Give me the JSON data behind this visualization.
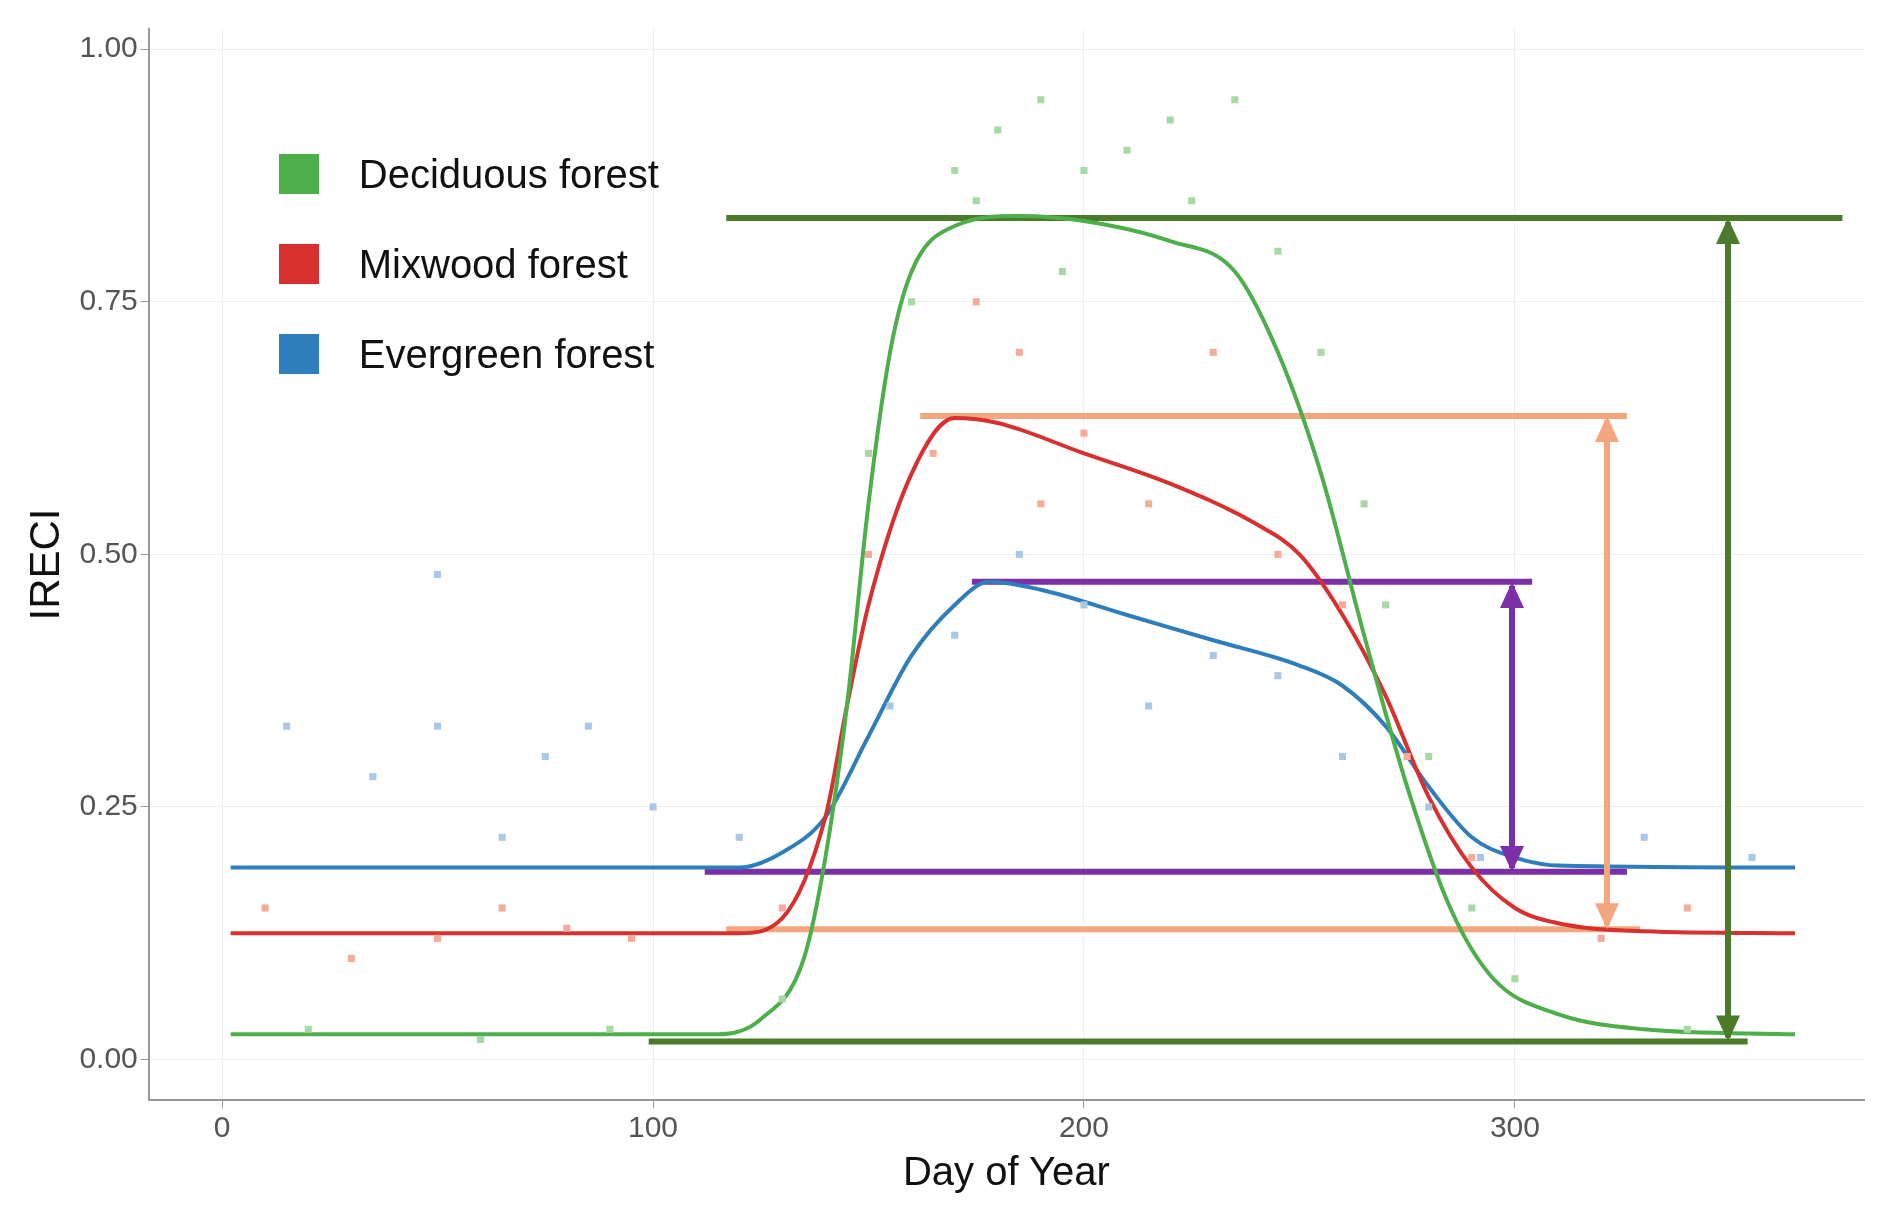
{
  "chart_data": {
    "type": "line",
    "xlabel": "Day of Year",
    "ylabel": "IRECI",
    "xlim": [
      -17,
      381
    ],
    "ylim": [
      -0.04,
      1.02
    ],
    "xticks": [
      0,
      100,
      200,
      300
    ],
    "yticks": [
      {
        "value": 0,
        "label": "0.00"
      },
      {
        "value": 0.25,
        "label": "0.25"
      },
      {
        "value": 0.5,
        "label": "0.50"
      },
      {
        "value": 0.75,
        "label": "0.75"
      },
      {
        "value": 1,
        "label": "1.00"
      }
    ],
    "grid": true,
    "legend": "top left",
    "marker": "none",
    "series": [
      {
        "type": "scatter",
        "marker": "square",
        "color": "#a8d8a4",
        "x": [
          150,
          160,
          170,
          180,
          190,
          200,
          210,
          220,
          235,
          245,
          255,
          265,
          270,
          280,
          290,
          300,
          20,
          60,
          90,
          340,
          130,
          225,
          195,
          175
        ],
        "values": [
          0.6,
          0.75,
          0.88,
          0.92,
          0.95,
          0.88,
          0.9,
          0.93,
          0.95,
          0.8,
          0.7,
          0.55,
          0.45,
          0.3,
          0.15,
          0.08,
          0.03,
          0.02,
          0.03,
          0.03,
          0.06,
          0.85,
          0.78,
          0.85
        ]
      },
      {
        "type": "scatter",
        "marker": "square",
        "color": "#f5ab9a",
        "x": [
          10,
          30,
          50,
          65,
          80,
          95,
          130,
          150,
          165,
          175,
          185,
          200,
          215,
          230,
          245,
          260,
          275,
          290,
          320,
          340,
          190
        ],
        "values": [
          0.15,
          0.1,
          0.12,
          0.15,
          0.13,
          0.12,
          0.15,
          0.5,
          0.6,
          0.75,
          0.7,
          0.62,
          0.55,
          0.7,
          0.5,
          0.45,
          0.3,
          0.2,
          0.12,
          0.15,
          0.55
        ]
      },
      {
        "type": "scatter",
        "marker": "square",
        "color": "#a9c8e6",
        "x": [
          15,
          35,
          50,
          65,
          75,
          85,
          100,
          120,
          155,
          170,
          185,
          200,
          215,
          230,
          245,
          260,
          280,
          292,
          330,
          355,
          50
        ],
        "values": [
          0.33,
          0.28,
          0.33,
          0.22,
          0.3,
          0.33,
          0.25,
          0.22,
          0.35,
          0.42,
          0.5,
          0.45,
          0.35,
          0.4,
          0.38,
          0.3,
          0.25,
          0.2,
          0.22,
          0.2,
          0.48
        ]
      },
      {
        "name": "Deciduous forest",
        "color": "#4daf4a",
        "x": [
          2,
          115,
          125,
          135,
          140,
          145,
          150,
          155,
          160,
          170,
          185,
          200,
          220,
          235,
          245,
          255,
          265,
          275,
          285,
          295,
          310,
          330,
          365
        ],
        "values": [
          0.025,
          0.025,
          0.04,
          0.1,
          0.2,
          0.35,
          0.55,
          0.7,
          0.78,
          0.825,
          0.835,
          0.83,
          0.81,
          0.78,
          0.7,
          0.58,
          0.42,
          0.27,
          0.15,
          0.08,
          0.045,
          0.03,
          0.025
        ]
      },
      {
        "name": "Mixwood forest",
        "color": "#d7302f",
        "x": [
          2,
          120,
          130,
          140,
          145,
          150,
          160,
          170,
          180,
          200,
          220,
          240,
          250,
          260,
          270,
          280,
          290,
          300,
          310,
          330,
          365
        ],
        "values": [
          0.125,
          0.125,
          0.14,
          0.24,
          0.35,
          0.45,
          0.58,
          0.635,
          0.63,
          0.6,
          0.57,
          0.53,
          0.5,
          0.44,
          0.36,
          0.26,
          0.19,
          0.15,
          0.135,
          0.127,
          0.125
        ]
      },
      {
        "name": "Evergreen forest",
        "color": "#2f7ebc",
        "x": [
          2,
          120,
          130,
          140,
          150,
          160,
          170,
          178,
          190,
          210,
          230,
          250,
          260,
          270,
          280,
          290,
          300,
          310,
          365
        ],
        "values": [
          0.19,
          0.19,
          0.205,
          0.24,
          0.32,
          0.4,
          0.45,
          0.473,
          0.465,
          0.44,
          0.415,
          0.39,
          0.37,
          0.33,
          0.27,
          0.22,
          0.2,
          0.192,
          0.19
        ]
      },
      {
        "color": "#4a7a2a",
        "x": [
          117,
          376
        ],
        "values": [
          0.833,
          0.833
        ]
      },
      {
        "color": "#4a7a2a",
        "x": [
          99,
          354
        ],
        "values": [
          0.018,
          0.018
        ]
      },
      {
        "color": "#f4a77e",
        "x": [
          162,
          326
        ],
        "values": [
          0.637,
          0.637
        ]
      },
      {
        "color": "#f4a77e",
        "x": [
          117,
          329
        ],
        "values": [
          0.129,
          0.129
        ]
      },
      {
        "color": "#7b2fa8",
        "x": [
          174,
          304
        ],
        "values": [
          0.473,
          0.473
        ]
      },
      {
        "color": "#7b2fa8",
        "x": [
          112,
          326
        ],
        "values": [
          0.186,
          0.186
        ]
      }
    ]
  }
}
